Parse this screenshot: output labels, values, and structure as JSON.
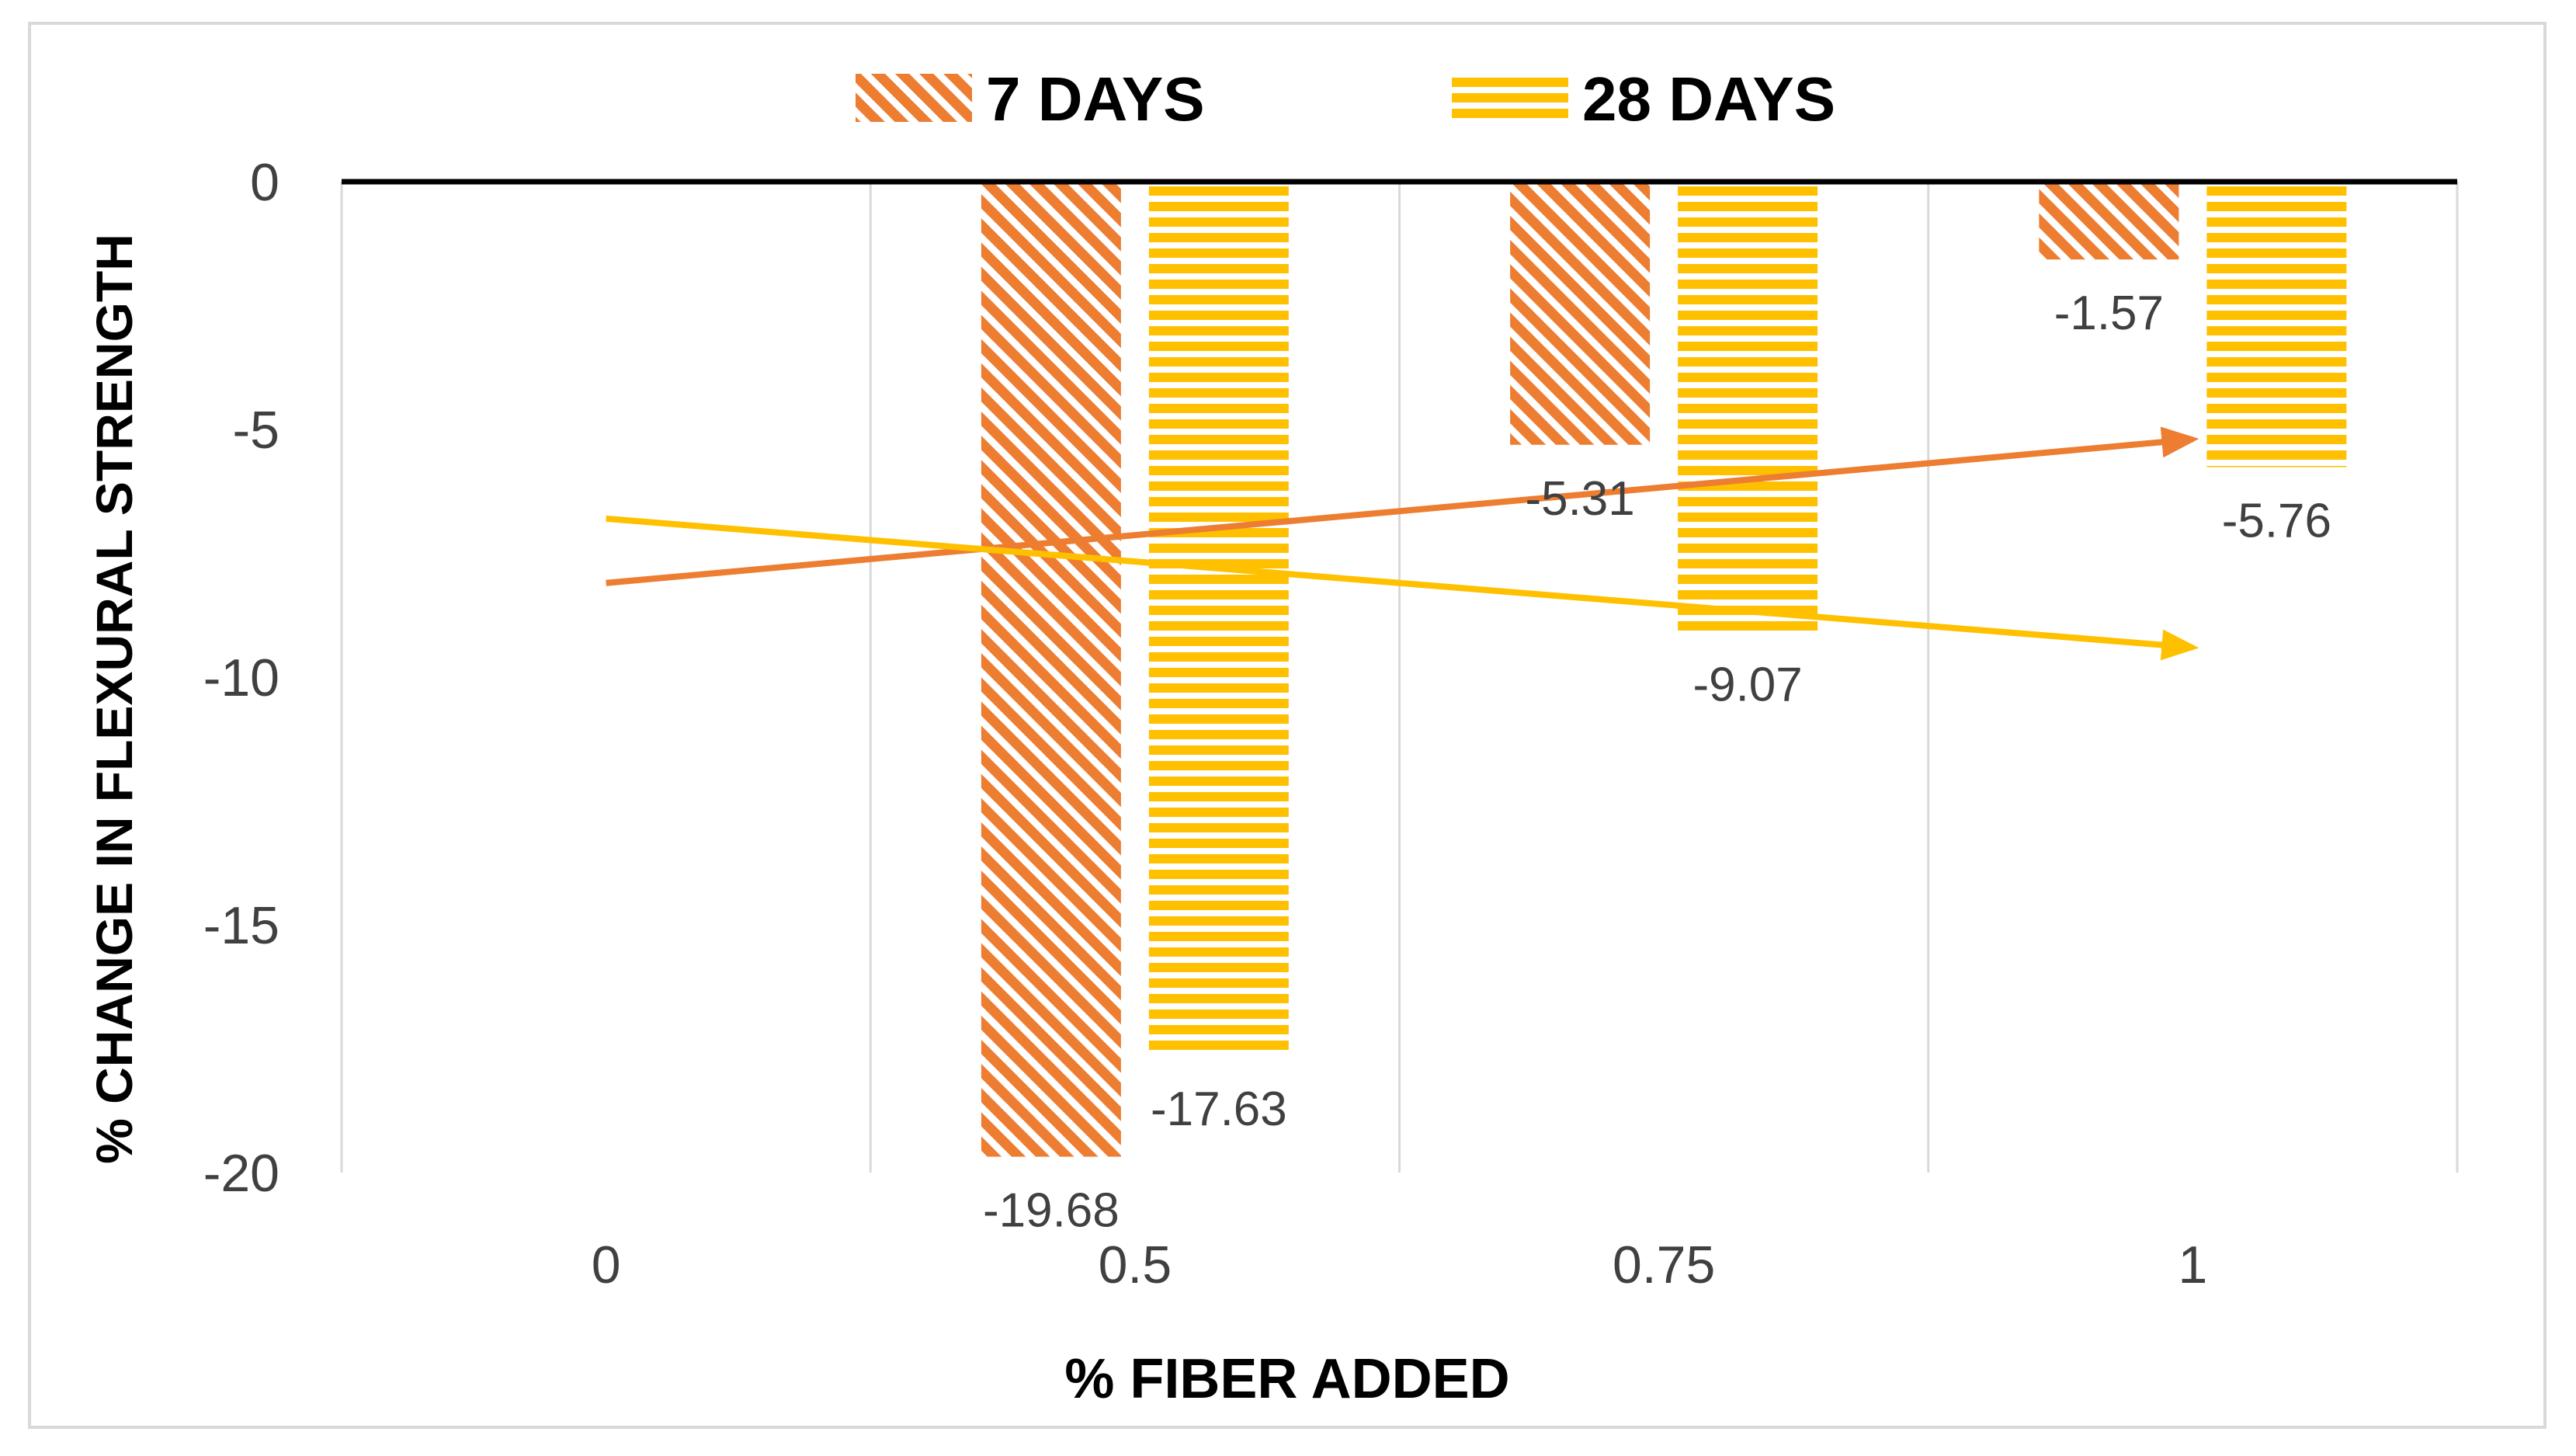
{
  "chart_data": {
    "type": "bar",
    "xlabel": "% FIBER ADDED",
    "ylabel": "% CHANGE IN FLEXURAL STRENGTH",
    "categories": [
      "0",
      "0.5",
      "0.75",
      "1"
    ],
    "ylim": [
      -20,
      0
    ],
    "yticks": [
      "0",
      "-5",
      "-10",
      "-15",
      "-20"
    ],
    "grid": "vertical",
    "legend": "top",
    "series": [
      {
        "name": "7 DAYS",
        "values": [
          null,
          -19.68,
          -5.31,
          -1.57
        ],
        "data_labels": [
          "",
          "-19.68",
          "-5.31",
          "-1.57"
        ],
        "color": "#ed7d31",
        "pattern": "diagonal-hatch"
      },
      {
        "name": "28 DAYS",
        "values": [
          null,
          -17.63,
          -9.07,
          -5.76
        ],
        "data_labels": [
          "",
          "-17.63",
          "-9.07",
          "-5.76"
        ],
        "color": "#ffc000",
        "pattern": "horizontal-stripes"
      }
    ],
    "trendlines": [
      {
        "series": "7 DAYS",
        "type": "linear",
        "from": [
          0,
          -8.1
        ],
        "to": [
          1,
          -5.2
        ],
        "color": "#ed7d31"
      },
      {
        "series": "28 DAYS",
        "type": "linear",
        "from": [
          0,
          -6.8
        ],
        "to": [
          1,
          -9.4
        ],
        "color": "#ffc000"
      }
    ]
  }
}
